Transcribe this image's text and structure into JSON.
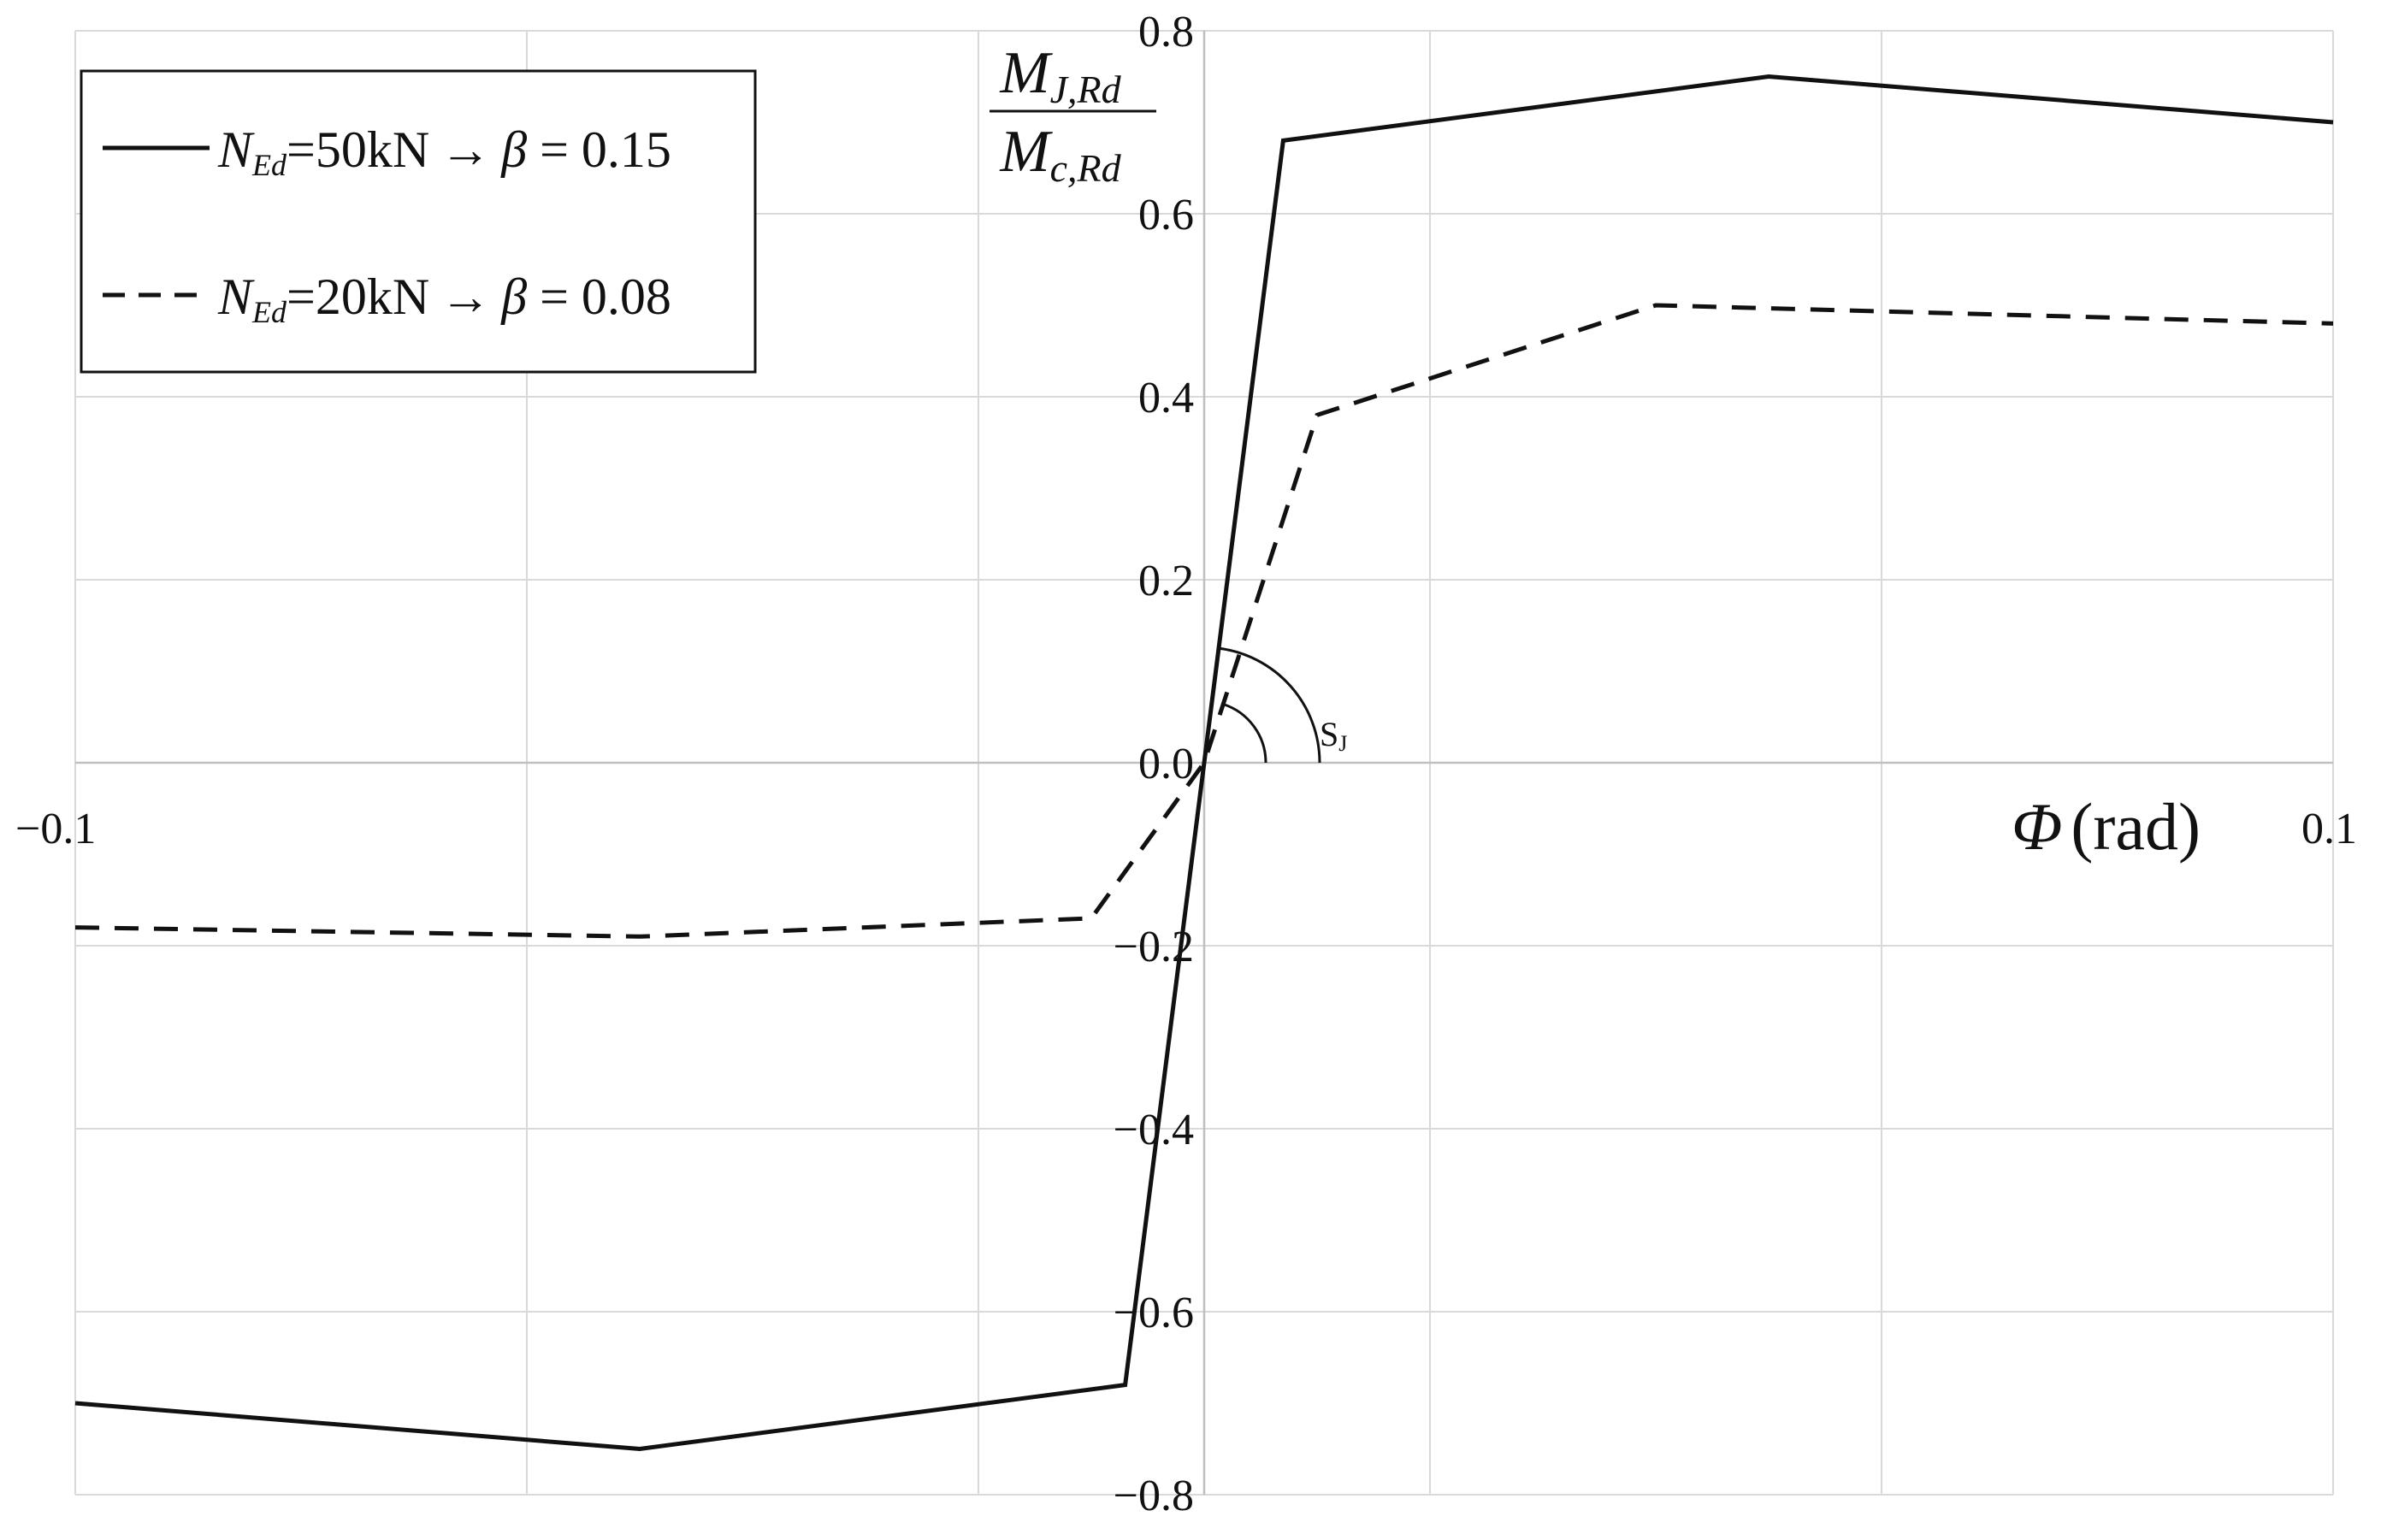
{
  "chart_data": {
    "type": "line",
    "title": "",
    "xlabel": {
      "symbol": "Φ",
      "unit": "(rad)"
    },
    "ylabel": {
      "numerator_main": "M",
      "numerator_sub": "J,Rd",
      "denominator_main": "M",
      "denominator_sub": "c,Rd"
    },
    "xlim": [
      -0.1,
      0.1
    ],
    "ylim": [
      -0.8,
      0.8
    ],
    "x_ticks": [
      -0.1,
      0.1
    ],
    "x_tick_labels": [
      "−0.1",
      "0.1"
    ],
    "y_ticks": [
      -0.8,
      -0.6,
      -0.4,
      -0.2,
      0.0,
      0.2,
      0.4,
      0.6,
      0.8
    ],
    "y_tick_labels": [
      "−0.8",
      "−0.6",
      "−0.4",
      "−0.2",
      "0.0",
      "0.2",
      "0.4",
      "0.6",
      "0.8"
    ],
    "x_grid": [
      -0.1,
      -0.06,
      -0.02,
      0.02,
      0.06,
      0.1
    ],
    "grid": true,
    "legend_position": "top-left",
    "series": [
      {
        "name": "N_Ed=50kN -> β=0.15",
        "legend": {
          "n": "N",
          "n_sub": "Ed",
          "value": "=50kN",
          "arrow": "→",
          "beta": "β",
          "beta_value": " = 0.15"
        },
        "style": "solid",
        "color": "#111111",
        "points": [
          [
            -0.1,
            -0.7
          ],
          [
            -0.05,
            -0.75
          ],
          [
            -0.007,
            -0.68
          ],
          [
            0.0,
            0.0
          ],
          [
            0.007,
            0.68
          ],
          [
            0.05,
            0.75
          ],
          [
            0.1,
            0.7
          ]
        ]
      },
      {
        "name": "N_Ed=20kN -> β=0.08",
        "legend": {
          "n": "N",
          "n_sub": "Ed",
          "value": "=20kN",
          "arrow": "→",
          "beta": "β",
          "beta_value": " = 0.08"
        },
        "style": "dashed",
        "color": "#111111",
        "points": [
          [
            -0.1,
            -0.18
          ],
          [
            -0.05,
            -0.19
          ],
          [
            -0.01,
            -0.17
          ],
          [
            0.0,
            0.0
          ],
          [
            0.01,
            0.38
          ],
          [
            0.04,
            0.5
          ],
          [
            0.1,
            0.48
          ]
        ]
      }
    ],
    "annotations": [
      {
        "text": "S",
        "sub": "J"
      }
    ]
  },
  "colors": {
    "line": "#111111",
    "grid": "#d9d9d9",
    "background": "#ffffff"
  }
}
